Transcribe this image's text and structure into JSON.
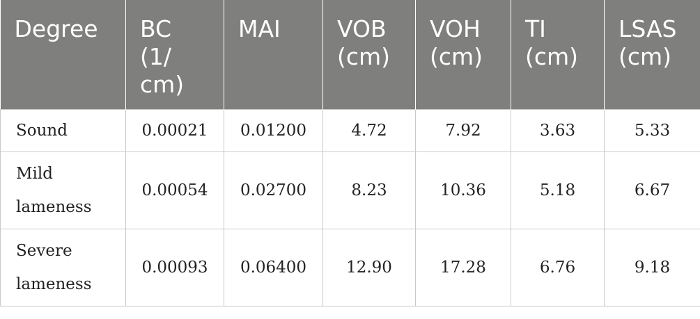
{
  "table": {
    "headers": [
      "Degree",
      "BC (1/ cm)",
      "MAI",
      "VOB (cm)",
      "VOH (cm)",
      "TI (cm)",
      "LSAS (cm)"
    ],
    "rows": [
      [
        "Sound",
        "0.00021",
        "0.01200",
        "4.72",
        "7.92",
        "3.63",
        "5.33"
      ],
      [
        "Mild lameness",
        "0.00054",
        "0.02700",
        "8.23",
        "10.36",
        "5.18",
        "6.67"
      ],
      [
        "Severe lameness",
        "0.00093",
        "0.06400",
        "12.90",
        "17.28",
        "6.76",
        "9.18"
      ]
    ]
  }
}
